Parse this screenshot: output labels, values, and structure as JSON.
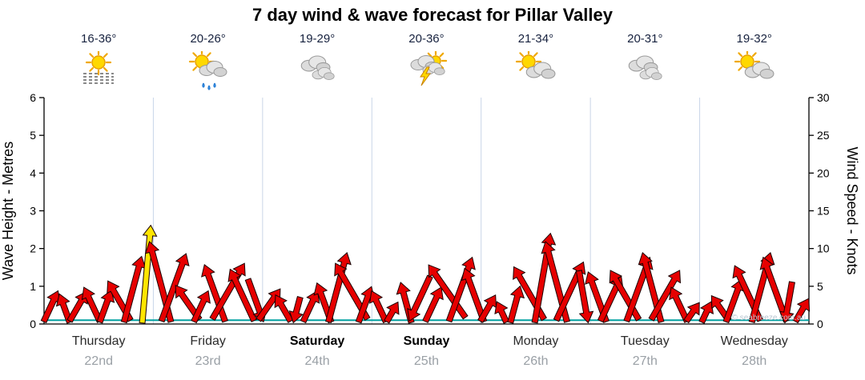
{
  "title": "7 day wind & wave forecast for Pillar Valley",
  "watermark": "© seabreeze.com.au",
  "days": [
    {
      "name": "Thursday",
      "date": "22nd",
      "temp": "16-36°",
      "icon": "sun-water",
      "emphasis": false
    },
    {
      "name": "Friday",
      "date": "23rd",
      "temp": "20-26°",
      "icon": "sun-cloud-rain",
      "emphasis": false
    },
    {
      "name": "Saturday",
      "date": "24th",
      "temp": "19-29°",
      "icon": "clouds",
      "emphasis": true
    },
    {
      "name": "Sunday",
      "date": "25th",
      "temp": "20-36°",
      "icon": "storm",
      "emphasis": true
    },
    {
      "name": "Monday",
      "date": "26th",
      "temp": "21-34°",
      "icon": "sun-cloud",
      "emphasis": false
    },
    {
      "name": "Tuesday",
      "date": "27th",
      "temp": "20-31°",
      "icon": "clouds",
      "emphasis": false
    },
    {
      "name": "Wednesday",
      "date": "28th",
      "temp": "19-32°",
      "icon": "sun-cloud",
      "emphasis": false
    }
  ],
  "chart_data": {
    "type": "wind-wave-forecast",
    "title": "7 day wind & wave forecast for Pillar Valley",
    "x_categories": [
      "Thursday 22nd",
      "Friday 23rd",
      "Saturday 24th",
      "Sunday 25th",
      "Monday 26th",
      "Tuesday 27th",
      "Wednesday 28th"
    ],
    "left_axis": {
      "label": "Wave Height - Metres",
      "min": 0,
      "max": 6,
      "tick_step": 1
    },
    "right_axis": {
      "label": "Wind Speed - Knots",
      "min": 0,
      "max": 30,
      "tick_step": 5
    },
    "grid": {
      "vertical_day_lines": true
    },
    "series": [
      {
        "name": "Wind Speed",
        "type": "wind-arrows",
        "unit": "knots",
        "samples_per_day": 8,
        "values": [
          4.5,
          4,
          4.5,
          5,
          4.5,
          6,
          9,
          13,
          11,
          9.5,
          5.5,
          4.5,
          8,
          8.5,
          7.5,
          6,
          5,
          4,
          3.5,
          4.5,
          5.5,
          9.5,
          8.5,
          5,
          4.5,
          3,
          5.5,
          6.5,
          5,
          8.5,
          9,
          7.5,
          4,
          3,
          5,
          8,
          12,
          11,
          8.5,
          7,
          7,
          6.5,
          7.5,
          9,
          9.5,
          7.5,
          5,
          3,
          3,
          4,
          6,
          8,
          9.5,
          9,
          5.5,
          3.5
        ],
        "directions_deg": [
          25,
          -20,
          30,
          -25,
          20,
          -30,
          15,
          5,
          -15,
          20,
          -35,
          25,
          -20,
          30,
          -25,
          160,
          35,
          -30,
          195,
          25,
          -20,
          15,
          -30,
          20,
          -25,
          30,
          -15,
          205,
          25,
          -35,
          20,
          -20,
          30,
          -25,
          15,
          -30,
          10,
          -15,
          25,
          170,
          -20,
          25,
          -30,
          20,
          -15,
          30,
          -25,
          35,
          25,
          -35,
          20,
          -25,
          15,
          -20,
          190,
          30
        ],
        "highlight": {
          "index": 7,
          "color": "#ffe500"
        }
      },
      {
        "name": "Wave Height",
        "type": "line",
        "unit": "metres",
        "approx_value": 0.1
      }
    ]
  },
  "colors": {
    "arrow_fill": "#e60000",
    "arrow_outline": "#1a0000",
    "highlight_arrow": "#ffe500",
    "wave_line": "#00a0a0",
    "grid_line": "#c9d6e8",
    "axis": "#000000",
    "tick_text": "#000000",
    "date_text": "#9aa0a6",
    "watermark_text": "#b9c6d0"
  }
}
